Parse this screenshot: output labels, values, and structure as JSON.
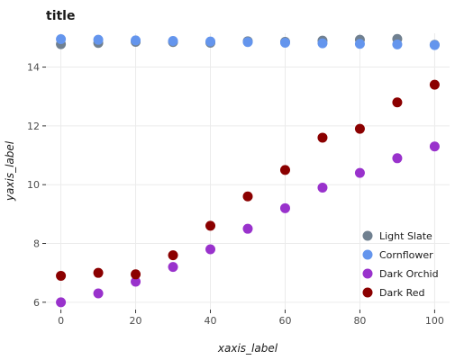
{
  "chart_data": {
    "type": "scatter",
    "title": "title",
    "xlabel": "xaxis_label",
    "ylabel": "yaxis_label",
    "xlim": [
      -4,
      104
    ],
    "ylim": [
      5.75,
      15.15
    ],
    "x_ticks": [
      0,
      20,
      40,
      60,
      80,
      100
    ],
    "y_ticks": [
      6,
      8,
      10,
      12,
      14
    ],
    "grid": true,
    "legend_position": "bottom-right",
    "x": [
      0,
      10,
      20,
      30,
      40,
      50,
      60,
      70,
      80,
      90,
      100
    ],
    "series": [
      {
        "name": "Light Slate",
        "color": "#708090",
        "values": [
          14.78,
          14.82,
          14.86,
          14.85,
          14.83,
          14.88,
          14.86,
          14.9,
          14.93,
          14.96,
          14.76
        ]
      },
      {
        "name": "Cornflower",
        "color": "#6495ed",
        "values": [
          14.95,
          14.93,
          14.91,
          14.89,
          14.87,
          14.85,
          14.83,
          14.81,
          14.79,
          14.77,
          14.75
        ]
      },
      {
        "name": "Dark Orchid",
        "color": "#9932cc",
        "values": [
          6.0,
          6.3,
          6.7,
          7.2,
          7.8,
          8.5,
          9.2,
          9.9,
          10.4,
          10.9,
          11.3
        ]
      },
      {
        "name": "Dark Red",
        "color": "#8b0000",
        "values": [
          6.9,
          7.0,
          6.95,
          7.6,
          8.6,
          9.6,
          10.5,
          11.6,
          11.9,
          12.8,
          13.4
        ]
      }
    ]
  }
}
